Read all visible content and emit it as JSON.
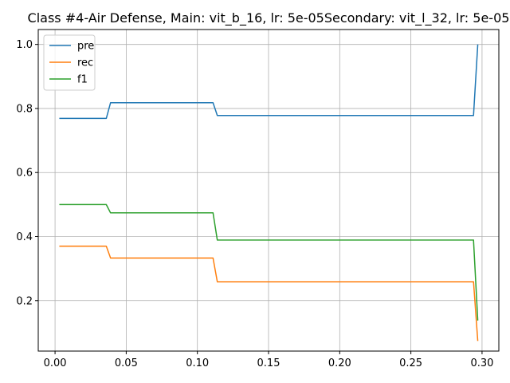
{
  "chart_data": {
    "type": "line",
    "title": "Class #4-Air Defense, Main: vit_b_16, lr: 5e-05Secondary: vit_l_32, lr: 5e-05",
    "xlabel": "",
    "ylabel": "",
    "xlim": [
      -0.0118,
      0.3118
    ],
    "ylim": [
      0.0425,
      1.0465
    ],
    "xticks": [
      0.0,
      0.05,
      0.1,
      0.15,
      0.2,
      0.25,
      0.3
    ],
    "xtick_labels": [
      "0.00",
      "0.05",
      "0.10",
      "0.15",
      "0.20",
      "0.25",
      "0.30"
    ],
    "yticks": [
      0.2,
      0.4,
      0.6,
      0.8,
      1.0
    ],
    "ytick_labels": [
      "0.2",
      "0.4",
      "0.6",
      "0.8",
      "1.0"
    ],
    "grid": true,
    "legend_position": "top-left",
    "series": [
      {
        "name": "pre",
        "color": "#1f77b4",
        "x": [
          0.003,
          0.036,
          0.039,
          0.111,
          0.114,
          0.294,
          0.297
        ],
        "y": [
          0.769,
          0.769,
          0.818,
          0.818,
          0.778,
          0.778,
          1.0
        ]
      },
      {
        "name": "rec",
        "color": "#ff7f0e",
        "x": [
          0.003,
          0.036,
          0.039,
          0.111,
          0.114,
          0.294,
          0.297
        ],
        "y": [
          0.37,
          0.37,
          0.333,
          0.333,
          0.259,
          0.259,
          0.074
        ]
      },
      {
        "name": "f1",
        "color": "#2ca02c",
        "x": [
          0.003,
          0.036,
          0.039,
          0.111,
          0.114,
          0.294,
          0.297
        ],
        "y": [
          0.5,
          0.5,
          0.474,
          0.474,
          0.389,
          0.389,
          0.138
        ]
      }
    ]
  }
}
